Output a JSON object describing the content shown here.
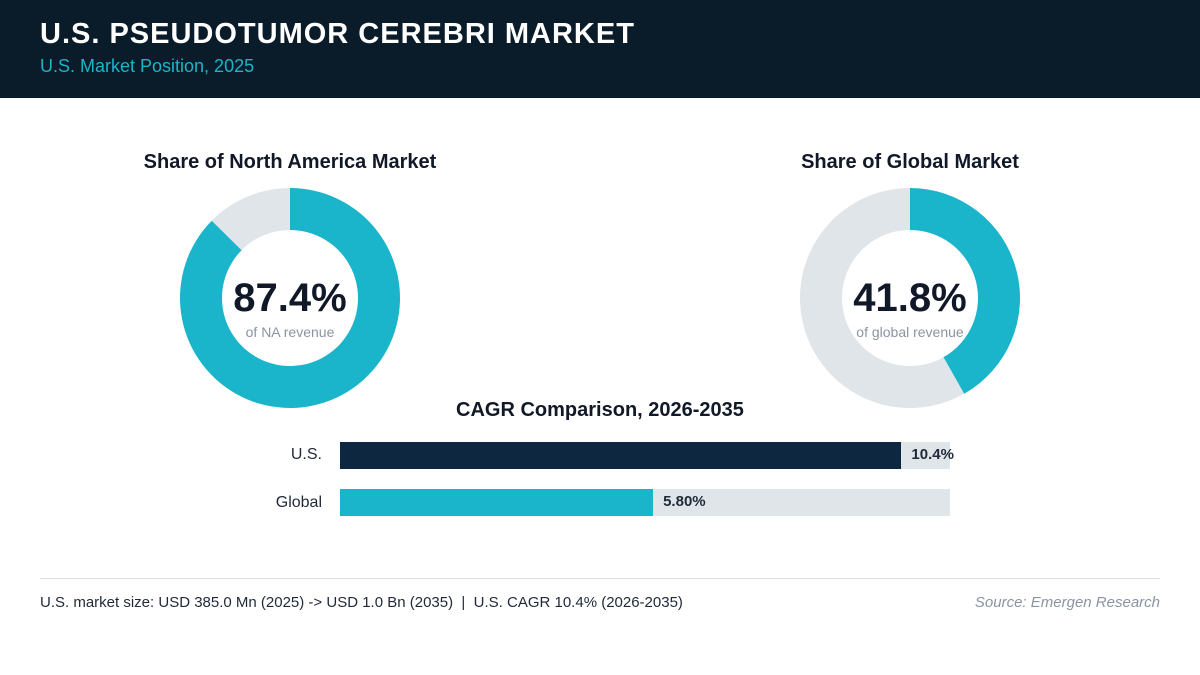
{
  "header": {
    "title": "U.S. PSEUDOTUMOR CEREBRI MARKET",
    "subtitle": "U.S. Market Position, 2025"
  },
  "chart_data": [
    {
      "type": "pie",
      "title": "Share of North America Market",
      "center_value": "87.4%",
      "center_caption": "of NA revenue",
      "value": 87.4,
      "colors": {
        "filled": "#1ab5cb",
        "remainder": "#e0e5ea"
      }
    },
    {
      "type": "pie",
      "title": "Share of Global Market",
      "center_value": "41.8%",
      "center_caption": "of global revenue",
      "value": 41.8,
      "colors": {
        "filled": "#1ab5cb",
        "remainder": "#e0e5ea"
      }
    },
    {
      "type": "bar",
      "title": "CAGR Comparison, 2026-2035",
      "categories": [
        "U.S.",
        "Global"
      ],
      "values": [
        10.4,
        5.8
      ],
      "value_labels": [
        "10.4%",
        "5.80%"
      ],
      "colors": [
        "#0e2740",
        "#1ab5cb"
      ],
      "track_color": "#e0e5ea",
      "xlim": [
        0,
        11.3
      ]
    }
  ],
  "footer": {
    "note": "U.S. market size: USD 385.0 Mn (2025) -> USD 1.0 Bn (2035)  |  U.S. CAGR 10.4% (2026-2035)",
    "source": "Source: Emergen Research"
  }
}
